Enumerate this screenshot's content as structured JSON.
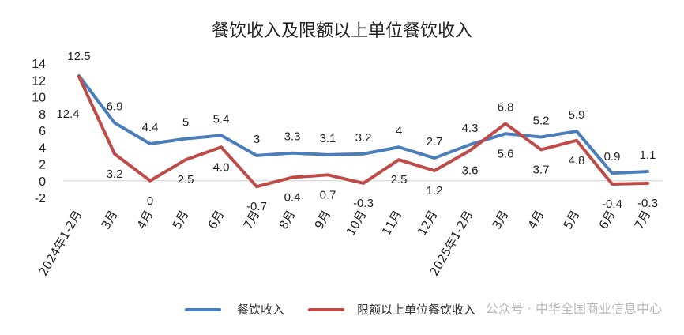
{
  "watermark": "公众号 · 中华全国商业信息中心",
  "chart_data": {
    "type": "line",
    "title": "餐饮收入及限额以上单位餐饮收入",
    "categories": [
      "2024年1-2月",
      "3月",
      "4月",
      "5月",
      "6月",
      "7月",
      "8月",
      "9月",
      "10月",
      "11月",
      "12月",
      "2025年1-2月",
      "3月",
      "4月",
      "5月",
      "6月",
      "7月"
    ],
    "series": [
      {
        "name": "餐饮收入",
        "color": "#4a7ebb",
        "values": [
          12.5,
          6.9,
          4.4,
          5,
          5.4,
          3,
          3.3,
          3.1,
          3.2,
          4,
          2.7,
          4.3,
          5.6,
          5.2,
          5.9,
          0.9,
          1.1
        ],
        "labels": [
          "12.5",
          "6.9",
          "4.4",
          "5",
          "5.4",
          "3",
          "3.3",
          "3.1",
          "3.2",
          "4",
          "2.7",
          "4.3",
          "5.6",
          "5.2",
          "5.9",
          "0.9",
          "1.1"
        ]
      },
      {
        "name": "限额以上单位餐饮收入",
        "color": "#be4b48",
        "values": [
          12.4,
          3.2,
          0,
          2.5,
          4.0,
          -0.7,
          0.4,
          0.7,
          -0.3,
          2.5,
          1.2,
          3.6,
          6.8,
          3.7,
          4.8,
          -0.4,
          -0.3
        ],
        "labels": [
          "12.4",
          "3.2",
          "0",
          "2.5",
          "4.0",
          "-0.7",
          "0.4",
          "0.7",
          "-0.3",
          "2.5",
          "1.2",
          "3.6",
          "6.8",
          "3.7",
          "4.8",
          "-0.4",
          "-0.3"
        ]
      }
    ],
    "yticks": [
      "-2",
      "0",
      "2",
      "4",
      "6",
      "8",
      "10",
      "12",
      "14"
    ],
    "ylim": [
      -2,
      14
    ],
    "grid": false,
    "legend_position": "bottom"
  }
}
